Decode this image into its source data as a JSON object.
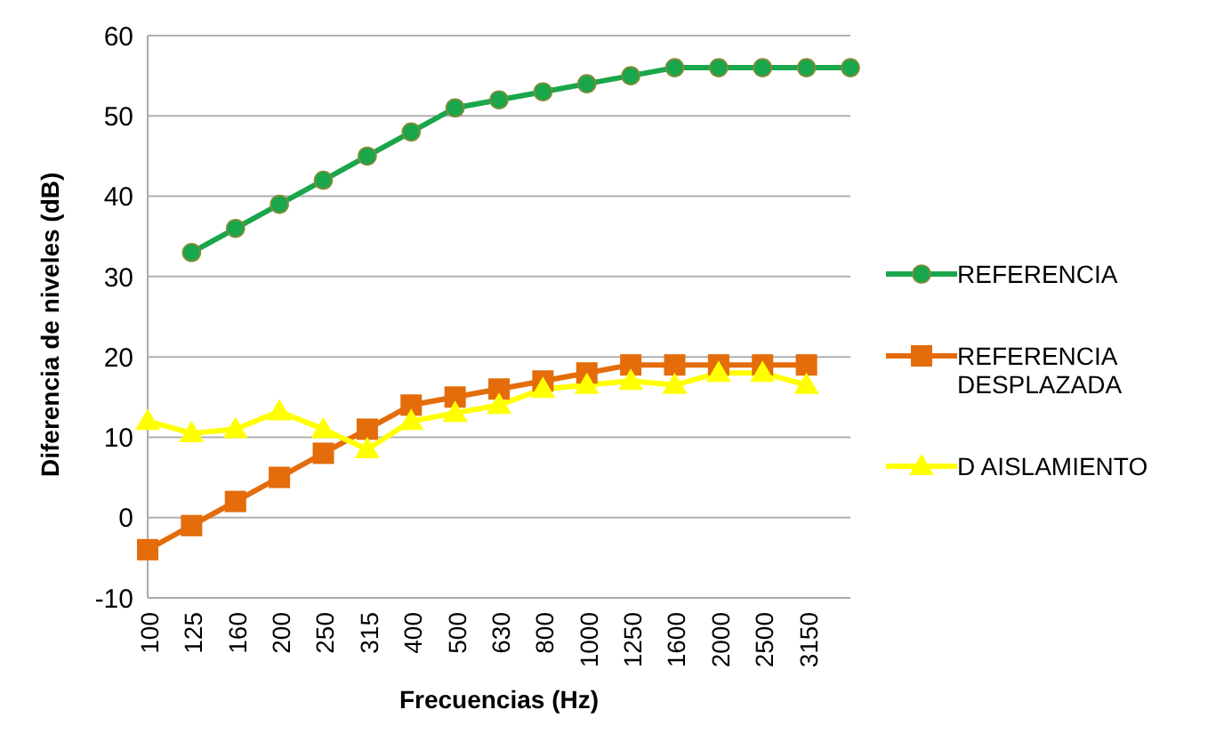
{
  "chart_data": {
    "type": "line",
    "xlabel": "Frecuencias (Hz)",
    "ylabel": "Diferencia de niveles (dB)",
    "categories": [
      "100",
      "125",
      "160",
      "200",
      "250",
      "315",
      "400",
      "500",
      "630",
      "800",
      "1000",
      "1250",
      "1600",
      "2000",
      "2500",
      "3150",
      null
    ],
    "ylim": [
      -10,
      60
    ],
    "yticks": [
      -10,
      0,
      10,
      20,
      30,
      40,
      50,
      60
    ],
    "grid": "y",
    "legend": "right",
    "series": [
      {
        "name": "REFERENCIA",
        "color": "#1aa64a",
        "marker": "circle",
        "values": [
          null,
          33,
          36,
          39,
          42,
          45,
          48,
          51,
          52,
          53,
          54,
          55,
          56,
          56,
          56,
          56,
          56
        ]
      },
      {
        "name": "REFERENCIA DESPLAZADA",
        "color": "#e46c0a",
        "marker": "square",
        "values": [
          -4,
          -1,
          2,
          5,
          8,
          11,
          14,
          15,
          16,
          17,
          18,
          19,
          19,
          19,
          19,
          19,
          null
        ]
      },
      {
        "name": "D AISLAMIENTO",
        "color": "#ffff00",
        "marker": "triangle",
        "values": [
          12,
          10.5,
          11,
          13.2,
          11,
          8.5,
          12,
          13,
          14,
          16,
          16.5,
          17,
          16.5,
          18,
          18,
          16.5,
          null
        ]
      }
    ]
  }
}
